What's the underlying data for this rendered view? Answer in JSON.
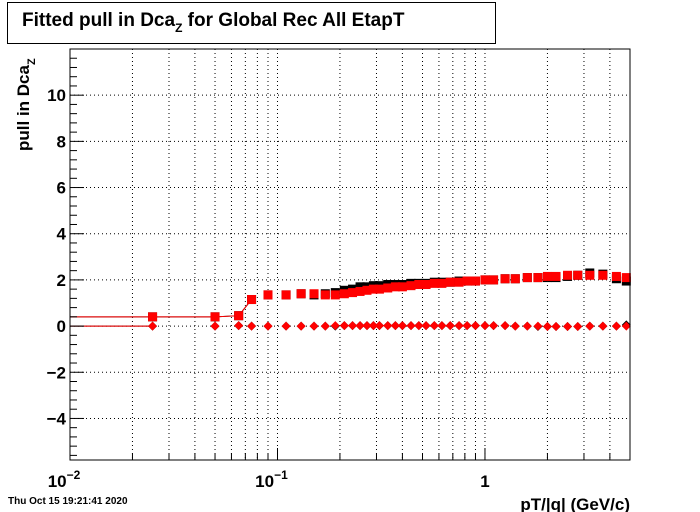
{
  "title": {
    "main": "Fitted pull in Dca",
    "sub": "Z",
    "rest": " for Global Rec All EtapT"
  },
  "timestamp": "Thu Oct 15 19:21:41 2020",
  "colors": {
    "series_red": "#ff0000",
    "series_black": "#000000"
  },
  "chart_data": {
    "type": "scatter",
    "title": "Fitted pull in Dca_Z for Global Rec All EtapT",
    "xlabel": "pT/|q| (GeV/c)",
    "ylabel_main": "pull in Dca",
    "ylabel_sub": "Z",
    "x_scale": "log",
    "xlim": [
      0.01,
      5
    ],
    "ylim": [
      -5.8,
      12
    ],
    "grid": true,
    "x_ticks": [
      {
        "value": 0.01,
        "base": "10",
        "exp": "−2"
      },
      {
        "value": 0.1,
        "base": "10",
        "exp": "−1"
      },
      {
        "value": 1,
        "base": "1",
        "exp": ""
      }
    ],
    "y_ticks": [
      {
        "value": -4,
        "label": "−4"
      },
      {
        "value": -2,
        "label": "−2"
      },
      {
        "value": 0,
        "label": "0"
      },
      {
        "value": 2,
        "label": "2"
      },
      {
        "value": 4,
        "label": "4"
      },
      {
        "value": 6,
        "label": "6"
      },
      {
        "value": 8,
        "label": "8"
      },
      {
        "value": 10,
        "label": "10"
      }
    ],
    "series": [
      {
        "marker": "square",
        "color": "#000000",
        "x": [
          0.025,
          0.05,
          0.065,
          0.075,
          0.09,
          0.11,
          0.13,
          0.15,
          0.17,
          0.19,
          0.21,
          0.23,
          0.25,
          0.27,
          0.29,
          0.31,
          0.34,
          0.37,
          0.4,
          0.44,
          0.48,
          0.52,
          0.57,
          0.62,
          0.68,
          0.75,
          0.82,
          0.9,
          1.0,
          1.1,
          1.25,
          1.4,
          1.6,
          1.8,
          2.0,
          2.2,
          2.5,
          2.8,
          3.2,
          3.7,
          4.3,
          4.8
        ],
        "y": [
          0.4,
          0.4,
          0.45,
          1.15,
          1.35,
          1.35,
          1.4,
          1.35,
          1.4,
          1.45,
          1.55,
          1.6,
          1.7,
          1.7,
          1.75,
          1.75,
          1.8,
          1.8,
          1.8,
          1.85,
          1.85,
          1.85,
          1.9,
          1.9,
          1.9,
          1.95,
          1.95,
          1.95,
          2.0,
          2.0,
          2.05,
          2.05,
          2.1,
          2.1,
          2.1,
          2.1,
          2.15,
          2.2,
          2.3,
          2.25,
          2.05,
          1.95
        ]
      },
      {
        "marker": "square",
        "color": "#ff0000",
        "x": [
          0.025,
          0.05,
          0.065,
          0.075,
          0.09,
          0.11,
          0.13,
          0.15,
          0.17,
          0.19,
          0.21,
          0.23,
          0.25,
          0.27,
          0.29,
          0.31,
          0.34,
          0.37,
          0.4,
          0.44,
          0.48,
          0.52,
          0.57,
          0.62,
          0.68,
          0.75,
          0.82,
          0.9,
          1.0,
          1.1,
          1.25,
          1.4,
          1.6,
          1.8,
          2.0,
          2.2,
          2.5,
          2.8,
          3.2,
          3.7,
          4.3,
          4.8
        ],
        "y": [
          0.4,
          0.4,
          0.45,
          1.15,
          1.35,
          1.35,
          1.4,
          1.4,
          1.35,
          1.35,
          1.4,
          1.45,
          1.5,
          1.55,
          1.6,
          1.6,
          1.65,
          1.7,
          1.7,
          1.75,
          1.8,
          1.8,
          1.85,
          1.85,
          1.9,
          1.9,
          1.95,
          1.95,
          2.0,
          2.0,
          2.05,
          2.05,
          2.1,
          2.1,
          2.15,
          2.15,
          2.2,
          2.2,
          2.2,
          2.2,
          2.15,
          2.1
        ]
      },
      {
        "marker": "diamond",
        "color": "#000000",
        "x": [
          0.025,
          0.05,
          0.065,
          0.075,
          0.09,
          0.11,
          0.13,
          0.15,
          0.17,
          0.19,
          0.21,
          0.23,
          0.25,
          0.27,
          0.29,
          0.31,
          0.34,
          0.37,
          0.4,
          0.44,
          0.48,
          0.52,
          0.57,
          0.62,
          0.68,
          0.75,
          0.82,
          0.9,
          1.0,
          1.1,
          1.25,
          1.4,
          1.6,
          1.8,
          2.0,
          2.2,
          2.5,
          2.8,
          3.2,
          3.7,
          4.3,
          4.8
        ],
        "y": [
          0.0,
          0.0,
          0.02,
          0.0,
          0.0,
          0.0,
          0.0,
          0.0,
          0.0,
          0.0,
          0.02,
          0.02,
          0.02,
          0.02,
          0.02,
          0.02,
          0.02,
          0.02,
          0.02,
          0.02,
          0.02,
          0.02,
          0.02,
          0.02,
          0.02,
          0.02,
          0.02,
          0.02,
          0.02,
          0.02,
          0.02,
          0.0,
          0.0,
          -0.02,
          -0.02,
          -0.02,
          -0.02,
          -0.02,
          0.0,
          0.0,
          0.0,
          0.05
        ]
      },
      {
        "marker": "diamond",
        "color": "#ff0000",
        "x": [
          0.025,
          0.05,
          0.065,
          0.075,
          0.09,
          0.11,
          0.13,
          0.15,
          0.17,
          0.19,
          0.21,
          0.23,
          0.25,
          0.27,
          0.29,
          0.31,
          0.34,
          0.37,
          0.4,
          0.44,
          0.48,
          0.52,
          0.57,
          0.62,
          0.68,
          0.75,
          0.82,
          0.9,
          1.0,
          1.1,
          1.25,
          1.4,
          1.6,
          1.8,
          2.0,
          2.2,
          2.5,
          2.8,
          3.2,
          3.7,
          4.3,
          4.8
        ],
        "y": [
          0.0,
          0.0,
          0.02,
          0.0,
          0.0,
          0.0,
          0.0,
          0.0,
          0.0,
          0.02,
          0.02,
          0.02,
          0.02,
          0.02,
          0.02,
          0.02,
          0.02,
          0.02,
          0.02,
          0.02,
          0.02,
          0.02,
          0.02,
          0.02,
          0.02,
          0.02,
          0.02,
          0.02,
          0.02,
          0.02,
          0.02,
          0.0,
          0.0,
          0.0,
          -0.02,
          -0.02,
          -0.02,
          -0.02,
          0.0,
          0.0,
          0.0,
          0.0
        ]
      }
    ]
  }
}
